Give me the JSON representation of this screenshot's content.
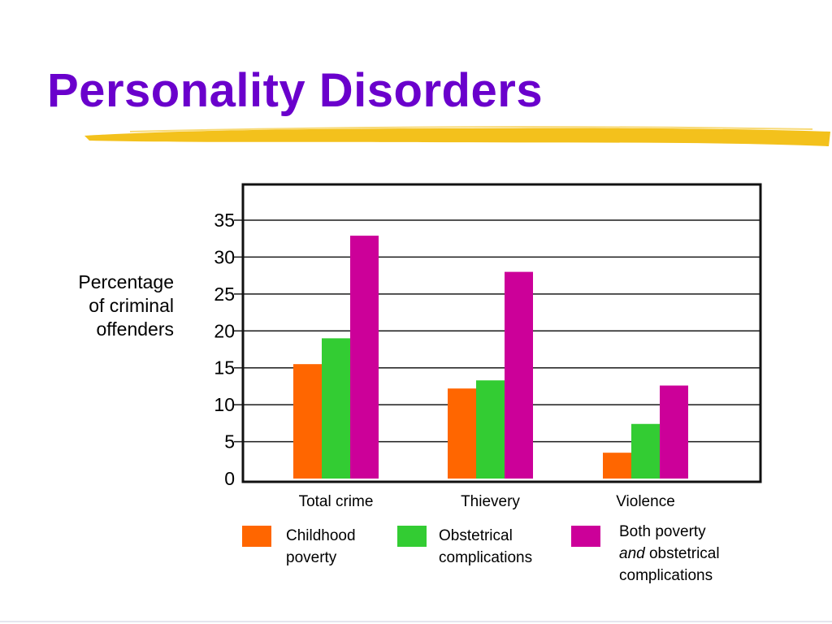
{
  "slide": {
    "title": "Personality Disorders",
    "underline_color": "#f3c11c"
  },
  "chart_data": {
    "type": "bar",
    "title": "",
    "ylabel": "Percentage of criminal offenders",
    "ylabel_lines": [
      "Percentage",
      "of criminal",
      "offenders"
    ],
    "xlabel": "",
    "categories": [
      "Total crime",
      "Thievery",
      "Violence"
    ],
    "ylim": [
      0,
      35
    ],
    "yticks": [
      0,
      5,
      10,
      15,
      20,
      25,
      30,
      35
    ],
    "grid": true,
    "legend_position": "bottom",
    "series": [
      {
        "name": "Childhood poverty",
        "color": "#ff6600",
        "values": [
          15.5,
          12.2,
          3.5
        ]
      },
      {
        "name": "Obstetrical complications",
        "color": "#33cc33",
        "values": [
          19.0,
          13.3,
          7.4
        ]
      },
      {
        "name": "Both poverty and obstetrical complications",
        "color": "#cc0099",
        "values": [
          32.9,
          28.0,
          12.6
        ]
      }
    ]
  },
  "legend": {
    "items": [
      {
        "lines": [
          "Childhood",
          "poverty"
        ],
        "color": "#ff6600"
      },
      {
        "lines": [
          "Obstetrical",
          "complications"
        ],
        "color": "#33cc33"
      },
      {
        "line1": "Both poverty",
        "line2_em": "and",
        "line2_rest": " obstetrical",
        "line3": "complications",
        "color": "#cc0099"
      }
    ]
  }
}
